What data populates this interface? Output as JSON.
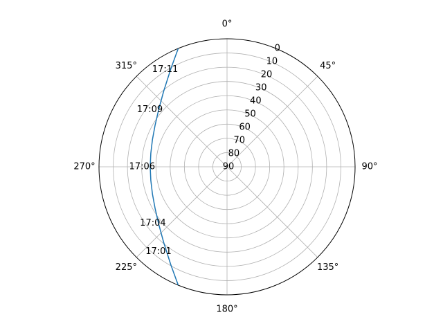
{
  "chart_data": {
    "type": "line",
    "projection": "polar",
    "theta_direction": "clockwise",
    "theta_zero_location": "top",
    "r_axis": {
      "inverted": true,
      "range": [
        0,
        90
      ],
      "ticks": [
        0,
        10,
        20,
        30,
        40,
        50,
        60,
        70,
        80,
        90
      ],
      "tick_labels": [
        "0",
        "10",
        "20",
        "30",
        "40",
        "50",
        "60",
        "70",
        "80",
        "90"
      ]
    },
    "theta_ticks": [
      {
        "deg": 0,
        "label": "0°"
      },
      {
        "deg": 45,
        "label": "45°"
      },
      {
        "deg": 90,
        "label": "90°"
      },
      {
        "deg": 135,
        "label": "135°"
      },
      {
        "deg": 180,
        "label": "180°"
      },
      {
        "deg": 225,
        "label": "225°"
      },
      {
        "deg": 270,
        "label": "270°"
      },
      {
        "deg": 315,
        "label": "315°"
      }
    ],
    "grid": true,
    "line_color": "#1f77b4",
    "grid_color": "#b0b0b0",
    "series": [
      {
        "points": [
          {
            "theta": 202.4,
            "r": 0
          },
          {
            "theta": 210,
            "r": 10.8
          },
          {
            "theta": 220,
            "r": 20.7
          },
          {
            "theta": 230,
            "r": 27.3
          },
          {
            "theta": 240,
            "r": 31.6
          },
          {
            "theta": 250,
            "r": 34.2
          },
          {
            "theta": 260,
            "r": 35.6
          },
          {
            "theta": 270,
            "r": 36
          },
          {
            "theta": 280,
            "r": 35.6
          },
          {
            "theta": 290,
            "r": 34.2
          },
          {
            "theta": 300,
            "r": 31.6
          },
          {
            "theta": 310,
            "r": 27.3
          },
          {
            "theta": 320,
            "r": 20.7
          },
          {
            "theta": 330,
            "r": 10.8
          },
          {
            "theta": 337.6,
            "r": 0
          }
        ]
      }
    ],
    "annotations": [
      {
        "text": "17:01",
        "theta": 218.9,
        "r": 13.3
      },
      {
        "text": "17:04",
        "theta": 232.8,
        "r": 24.6
      },
      {
        "text": "17:06",
        "theta": 270,
        "r": 30.3
      },
      {
        "text": "17:09",
        "theta": 306.5,
        "r": 22.5
      },
      {
        "text": "17:11",
        "theta": 327.5,
        "r": 9
      }
    ]
  }
}
